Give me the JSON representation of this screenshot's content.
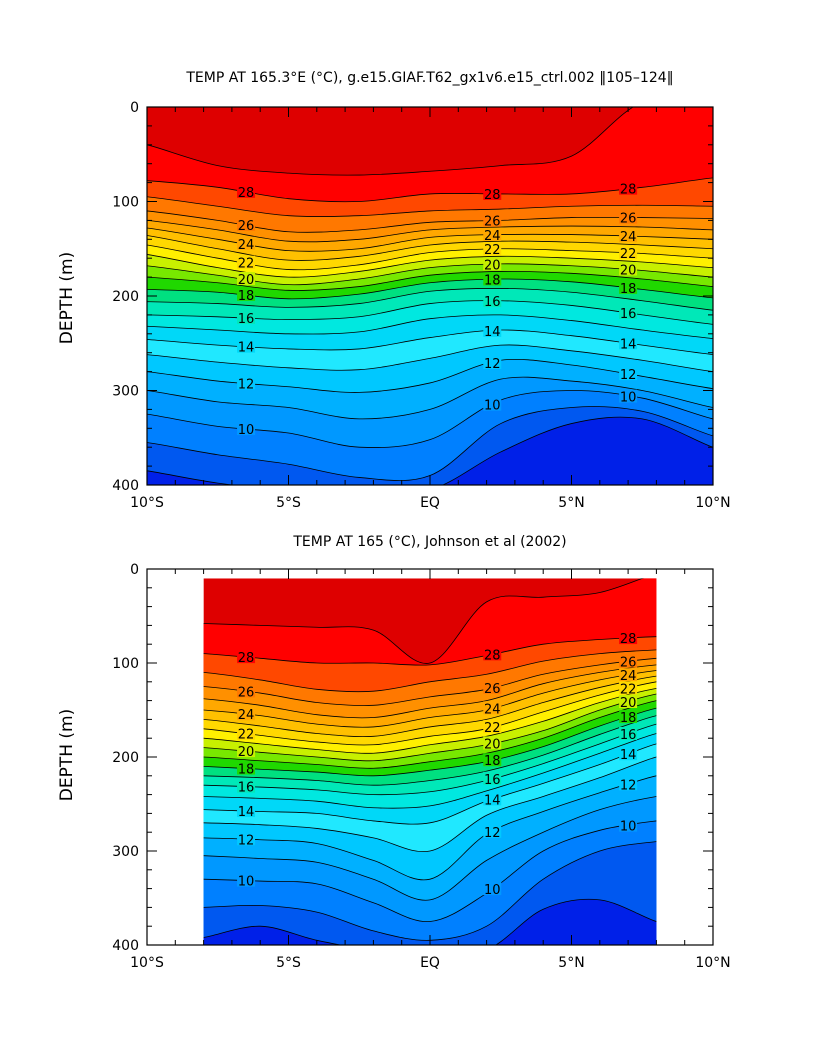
{
  "chart_data": [
    {
      "type": "contour",
      "title": "TEMP AT 165.3°E (°C), g.e15.GIAF.T62_gx1v6.e15_ctrl.002 ‖105–124‖",
      "ylabel": "DEPTH (m)",
      "xlabel": "",
      "xlim": [
        -10,
        10
      ],
      "ylim": [
        400,
        0
      ],
      "y_reversed": true,
      "x_ticks": [
        {
          "value": -10,
          "label": "10°S"
        },
        {
          "value": -5,
          "label": "5°S"
        },
        {
          "value": 0,
          "label": "EQ"
        },
        {
          "value": 5,
          "label": "5°N"
        },
        {
          "value": 10,
          "label": "10°N"
        }
      ],
      "y_ticks": [
        {
          "value": 0,
          "label": "0"
        },
        {
          "value": 100,
          "label": "100"
        },
        {
          "value": 200,
          "label": "200"
        },
        {
          "value": 300,
          "label": "300"
        },
        {
          "value": 400,
          "label": "400"
        }
      ],
      "data_extent_x": [
        -10,
        10
      ],
      "data_extent_y": [
        0,
        400
      ],
      "contour_interval": 1,
      "x": [
        -10,
        -7.5,
        -5,
        -2.5,
        0,
        2.5,
        5,
        7.5,
        10
      ],
      "isotherms": [
        {
          "level": 29,
          "depths": [
            40,
            62,
            70,
            72,
            68,
            62,
            52,
            -1,
            -1
          ]
        },
        {
          "level": 28,
          "depths": [
            78,
            85,
            97,
            100,
            92,
            92,
            92,
            85,
            75
          ]
        },
        {
          "level": 27,
          "depths": [
            95,
            105,
            115,
            115,
            110,
            108,
            105,
            104,
            105
          ]
        },
        {
          "level": 26,
          "depths": [
            110,
            120,
            132,
            130,
            122,
            120,
            117,
            117,
            118
          ]
        },
        {
          "level": 25,
          "depths": [
            120,
            130,
            142,
            140,
            130,
            127,
            126,
            127,
            130
          ]
        },
        {
          "level": 24,
          "depths": [
            128,
            140,
            152,
            150,
            138,
            135,
            135,
            137,
            140
          ]
        },
        {
          "level": 23,
          "depths": [
            136,
            150,
            162,
            158,
            146,
            142,
            143,
            146,
            150
          ]
        },
        {
          "level": 22,
          "depths": [
            146,
            160,
            172,
            167,
            154,
            150,
            152,
            155,
            160
          ]
        },
        {
          "level": 21,
          "depths": [
            156,
            170,
            180,
            174,
            162,
            158,
            160,
            164,
            170
          ]
        },
        {
          "level": 20,
          "depths": [
            168,
            178,
            188,
            182,
            170,
            166,
            168,
            173,
            180
          ]
        },
        {
          "level": 19,
          "depths": [
            180,
            186,
            194,
            190,
            178,
            174,
            176,
            182,
            190
          ]
        },
        {
          "level": 18,
          "depths": [
            193,
            196,
            203,
            198,
            186,
            182,
            185,
            193,
            202
          ]
        },
        {
          "level": 17,
          "depths": [
            206,
            208,
            212,
            208,
            195,
            192,
            196,
            205,
            215
          ]
        },
        {
          "level": 16,
          "depths": [
            220,
            222,
            225,
            222,
            208,
            205,
            210,
            220,
            230
          ]
        },
        {
          "level": 15,
          "depths": [
            232,
            236,
            240,
            238,
            224,
            220,
            226,
            236,
            245
          ]
        },
        {
          "level": 14,
          "depths": [
            246,
            252,
            256,
            256,
            244,
            236,
            242,
            252,
            262
          ]
        },
        {
          "level": 13,
          "depths": [
            262,
            270,
            276,
            278,
            266,
            252,
            258,
            268,
            280
          ]
        },
        {
          "level": 12,
          "depths": [
            280,
            290,
            296,
            302,
            292,
            268,
            273,
            285,
            298
          ]
        },
        {
          "level": 11,
          "depths": [
            300,
            312,
            318,
            330,
            320,
            288,
            290,
            300,
            318
          ]
        },
        {
          "level": 10,
          "depths": [
            325,
            338,
            345,
            360,
            352,
            310,
            300,
            308,
            330
          ]
        },
        {
          "level": 9,
          "depths": [
            355,
            368,
            378,
            392,
            390,
            335,
            318,
            322,
            348
          ]
        },
        {
          "level": 8,
          "depths": [
            385,
            398,
            -1,
            -1,
            -1,
            365,
            335,
            330,
            360
          ]
        }
      ],
      "labeled_contours": [
        {
          "level": 28,
          "label": "28"
        },
        {
          "level": 26,
          "label": "26"
        },
        {
          "level": 24,
          "label": "24"
        },
        {
          "level": 22,
          "label": "22"
        },
        {
          "level": 20,
          "label": "20"
        },
        {
          "level": 18,
          "label": "18"
        },
        {
          "level": 16,
          "label": "16"
        },
        {
          "level": 14,
          "label": "14"
        },
        {
          "level": 12,
          "label": "12"
        },
        {
          "level": 10,
          "label": "10"
        }
      ],
      "fill_colors": {
        "above_29": "#de0000",
        "28_29": "#ff0000",
        "27_28": "#ff4800",
        "26_27": "#ff7800",
        "25_26": "#ff9000",
        "24_25": "#ffa800",
        "23_24": "#ffc000",
        "22_23": "#ffd800",
        "21_22": "#fff000",
        "20_21": "#c8f000",
        "19_20": "#78e800",
        "18_19": "#20d800",
        "17_18": "#00e080",
        "16_17": "#00e8b8",
        "15_16": "#00e8e0",
        "14_15": "#00d8f8",
        "13_14": "#20e8ff",
        "12_13": "#00c8ff",
        "11_12": "#00b0ff",
        "10_11": "#0098ff",
        "9_10": "#0080ff",
        "8_9": "#0058f0",
        "below_8": "#0020e8"
      }
    },
    {
      "type": "contour",
      "title": "TEMP AT 165 (°C), Johnson et al (2002)",
      "ylabel": "DEPTH (m)",
      "xlabel": "",
      "xlim": [
        -10,
        10
      ],
      "ylim": [
        400,
        0
      ],
      "y_reversed": true,
      "x_ticks": [
        {
          "value": -10,
          "label": "10°S"
        },
        {
          "value": -5,
          "label": "5°S"
        },
        {
          "value": 0,
          "label": "EQ"
        },
        {
          "value": 5,
          "label": "5°N"
        },
        {
          "value": 10,
          "label": "10°N"
        }
      ],
      "y_ticks": [
        {
          "value": 0,
          "label": "0"
        },
        {
          "value": 100,
          "label": "100"
        },
        {
          "value": 200,
          "label": "200"
        },
        {
          "value": 300,
          "label": "300"
        },
        {
          "value": 400,
          "label": "400"
        }
      ],
      "data_extent_x": [
        -8,
        8
      ],
      "data_extent_y": [
        10,
        400
      ],
      "contour_interval": 1,
      "x": [
        -8,
        -6,
        -4,
        -2,
        0,
        2,
        4,
        6,
        8
      ],
      "isotherms": [
        {
          "level": 29,
          "depths": [
            58,
            60,
            62,
            65,
            100,
            35,
            30,
            25,
            -1
          ]
        },
        {
          "level": 28,
          "depths": [
            90,
            95,
            100,
            100,
            102,
            92,
            80,
            75,
            72
          ]
        },
        {
          "level": 27,
          "depths": [
            110,
            118,
            128,
            130,
            120,
            112,
            98,
            90,
            86
          ]
        },
        {
          "level": 26,
          "depths": [
            125,
            132,
            142,
            145,
            136,
            128,
            112,
            102,
            95
          ]
        },
        {
          "level": 25,
          "depths": [
            138,
            145,
            155,
            158,
            148,
            140,
            122,
            110,
            102
          ]
        },
        {
          "level": 24,
          "depths": [
            150,
            156,
            165,
            168,
            158,
            150,
            132,
            118,
            108
          ]
        },
        {
          "level": 23,
          "depths": [
            160,
            167,
            175,
            178,
            168,
            160,
            142,
            126,
            114
          ]
        },
        {
          "level": 22,
          "depths": [
            170,
            177,
            184,
            187,
            178,
            170,
            152,
            134,
            120
          ]
        },
        {
          "level": 21,
          "depths": [
            180,
            186,
            192,
            196,
            187,
            178,
            162,
            142,
            127
          ]
        },
        {
          "level": 20,
          "depths": [
            190,
            195,
            200,
            204,
            196,
            187,
            172,
            150,
            133
          ]
        },
        {
          "level": 19,
          "depths": [
            200,
            204,
            208,
            212,
            205,
            196,
            180,
            158,
            140
          ]
        },
        {
          "level": 18,
          "depths": [
            210,
            213,
            216,
            220,
            214,
            205,
            189,
            167,
            148
          ]
        },
        {
          "level": 17,
          "depths": [
            220,
            222,
            225,
            230,
            225,
            215,
            198,
            176,
            156
          ]
        },
        {
          "level": 16,
          "depths": [
            230,
            232,
            235,
            240,
            237,
            225,
            207,
            186,
            165
          ]
        },
        {
          "level": 15,
          "depths": [
            242,
            244,
            247,
            254,
            252,
            236,
            217,
            196,
            175
          ]
        },
        {
          "level": 14,
          "depths": [
            256,
            258,
            260,
            268,
            270,
            247,
            228,
            208,
            186
          ]
        },
        {
          "level": 13,
          "depths": [
            270,
            272,
            276,
            286,
            300,
            262,
            242,
            222,
            200
          ]
        },
        {
          "level": 12,
          "depths": [
            286,
            288,
            292,
            310,
            330,
            282,
            258,
            238,
            220
          ]
        },
        {
          "level": 11,
          "depths": [
            305,
            308,
            312,
            330,
            352,
            310,
            280,
            256,
            242
          ]
        },
        {
          "level": 10,
          "depths": [
            330,
            332,
            335,
            355,
            375,
            345,
            300,
            278,
            268
          ]
        },
        {
          "level": 9,
          "depths": [
            360,
            358,
            365,
            385,
            395,
            380,
            330,
            300,
            290
          ]
        },
        {
          "level": 8,
          "depths": [
            392,
            380,
            395,
            -1,
            -1,
            -1,
            362,
            352,
            375
          ]
        }
      ],
      "labeled_contours": [
        {
          "level": 28,
          "label": "28"
        },
        {
          "level": 26,
          "label": "26"
        },
        {
          "level": 24,
          "label": "24"
        },
        {
          "level": 22,
          "label": "22"
        },
        {
          "level": 20,
          "label": "20"
        },
        {
          "level": 18,
          "label": "18"
        },
        {
          "level": 16,
          "label": "16"
        },
        {
          "level": 14,
          "label": "14"
        },
        {
          "level": 12,
          "label": "12"
        },
        {
          "level": 10,
          "label": "10"
        }
      ]
    }
  ]
}
